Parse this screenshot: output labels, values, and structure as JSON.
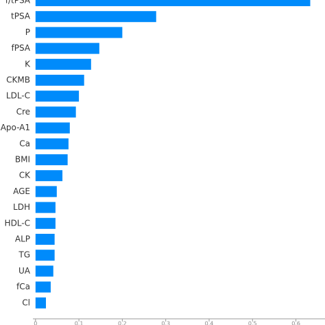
{
  "chart_data": {
    "type": "barh",
    "color": "#008bfb",
    "categories": [
      "f/tPSA",
      "tPSA",
      "P",
      "fPSA",
      "K",
      "CKMB",
      "LDL-C",
      "Cre",
      "Apo-A1",
      "Ca",
      "BMI",
      "CK",
      "AGE",
      "LDH",
      "HDL-C",
      "ALP",
      "TG",
      "UA",
      "fCa",
      "Cl"
    ],
    "values": [
      0.633,
      0.278,
      0.2,
      0.147,
      0.128,
      0.112,
      0.1,
      0.093,
      0.079,
      0.076,
      0.074,
      0.062,
      0.049,
      0.046,
      0.046,
      0.044,
      0.044,
      0.041,
      0.035,
      0.024
    ],
    "xlim": [
      -0.006,
      0.667
    ],
    "xticks": [
      0,
      0.1,
      0.2,
      0.3,
      0.4,
      0.5,
      0.6
    ]
  }
}
